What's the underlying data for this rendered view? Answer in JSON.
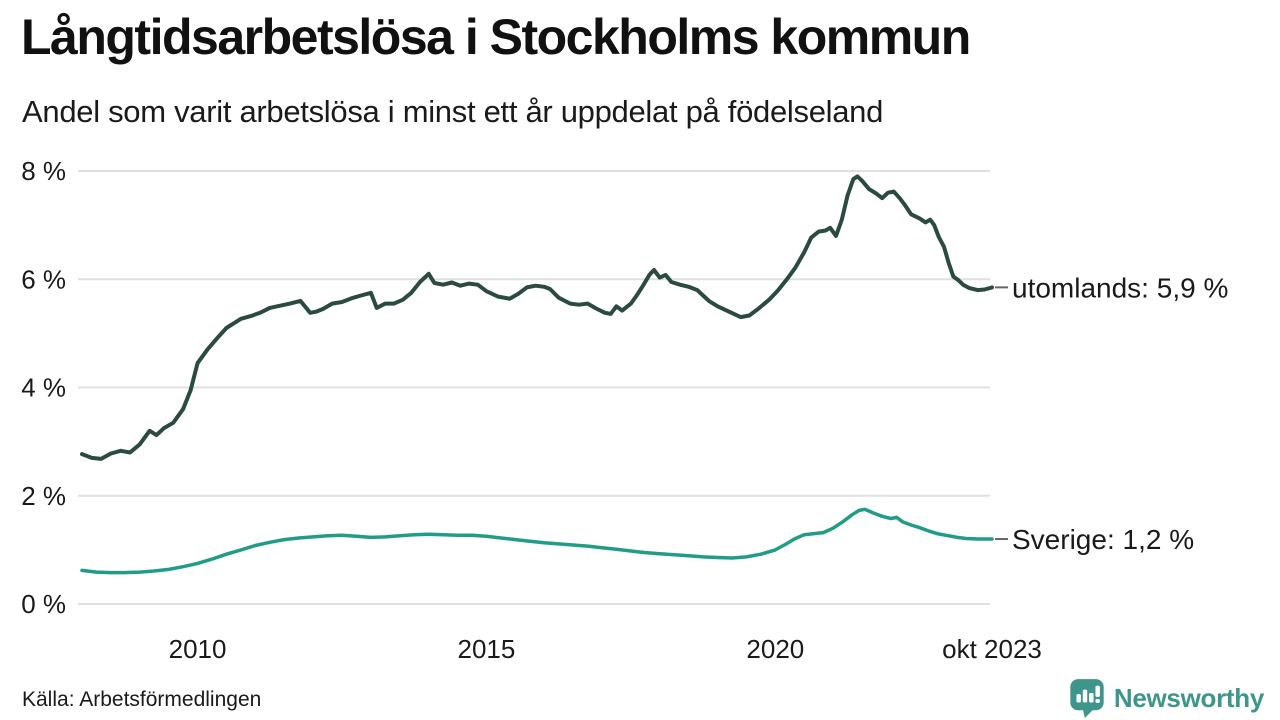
{
  "header": {
    "title": "Långtidsarbetslösa i Stockholms kommun",
    "subtitle": "Andel som varit arbetslösa i minst ett år uppdelat på födelseland"
  },
  "footer": {
    "source": "Källa: Arbetsförmedlingen",
    "brand": "Newsworthy"
  },
  "colors": {
    "foreign_line": "#2b4a40",
    "sweden_line": "#219d87",
    "grid": "#e0e0e0",
    "text": "#1a1a1a",
    "brand_teal": "#3d958b",
    "end_dash": "#666666"
  },
  "chart_data": {
    "type": "line",
    "title": "Långtidsarbetslösa i Stockholms kommun",
    "subtitle": "Andel som varit arbetslösa i minst ett år uppdelat på födelseland",
    "grid": true,
    "grid_color": "#e0e0e0",
    "legend_position": "right-end-labels",
    "x_axis": {
      "range": [
        2008.0,
        2023.75
      ],
      "ticks": [
        {
          "year": 2010,
          "label": "2010"
        },
        {
          "year": 2015,
          "label": "2015"
        },
        {
          "year": 2020,
          "label": "2020"
        },
        {
          "year": 2023.75,
          "label": "okt 2023"
        }
      ]
    },
    "y_axis": {
      "range": [
        0,
        8
      ],
      "unit": "%",
      "ticks": [
        {
          "value": 0,
          "label": "0 %"
        },
        {
          "value": 2,
          "label": "2 %"
        },
        {
          "value": 4,
          "label": "4 %"
        },
        {
          "value": 6,
          "label": "6 %"
        },
        {
          "value": 8,
          "label": "8 %"
        }
      ]
    },
    "series": [
      {
        "name": "utomlands",
        "end_label": "utomlands: 5,9 %",
        "end_value_label": "5,9 %",
        "color": "#2b4a40",
        "width": 4,
        "points": [
          [
            2008.0,
            2.77
          ],
          [
            2008.17,
            2.7
          ],
          [
            2008.33,
            2.68
          ],
          [
            2008.5,
            2.78
          ],
          [
            2008.67,
            2.83
          ],
          [
            2008.83,
            2.8
          ],
          [
            2009.0,
            2.95
          ],
          [
            2009.17,
            3.2
          ],
          [
            2009.29,
            3.12
          ],
          [
            2009.42,
            3.25
          ],
          [
            2009.58,
            3.35
          ],
          [
            2009.75,
            3.6
          ],
          [
            2009.88,
            3.95
          ],
          [
            2010.0,
            4.45
          ],
          [
            2010.17,
            4.7
          ],
          [
            2010.33,
            4.9
          ],
          [
            2010.5,
            5.1
          ],
          [
            2010.75,
            5.27
          ],
          [
            2010.92,
            5.32
          ],
          [
            2011.08,
            5.38
          ],
          [
            2011.25,
            5.47
          ],
          [
            2011.42,
            5.51
          ],
          [
            2011.6,
            5.55
          ],
          [
            2011.78,
            5.6
          ],
          [
            2011.95,
            5.38
          ],
          [
            2012.05,
            5.4
          ],
          [
            2012.17,
            5.45
          ],
          [
            2012.33,
            5.55
          ],
          [
            2012.5,
            5.58
          ],
          [
            2012.67,
            5.65
          ],
          [
            2012.83,
            5.7
          ],
          [
            2013.0,
            5.75
          ],
          [
            2013.1,
            5.47
          ],
          [
            2013.25,
            5.55
          ],
          [
            2013.4,
            5.55
          ],
          [
            2013.55,
            5.62
          ],
          [
            2013.7,
            5.75
          ],
          [
            2013.85,
            5.95
          ],
          [
            2014.0,
            6.1
          ],
          [
            2014.1,
            5.93
          ],
          [
            2014.25,
            5.9
          ],
          [
            2014.4,
            5.94
          ],
          [
            2014.55,
            5.88
          ],
          [
            2014.7,
            5.92
          ],
          [
            2014.85,
            5.9
          ],
          [
            2015.0,
            5.78
          ],
          [
            2015.2,
            5.68
          ],
          [
            2015.4,
            5.64
          ],
          [
            2015.55,
            5.73
          ],
          [
            2015.7,
            5.85
          ],
          [
            2015.85,
            5.88
          ],
          [
            2016.0,
            5.86
          ],
          [
            2016.1,
            5.82
          ],
          [
            2016.25,
            5.66
          ],
          [
            2016.45,
            5.55
          ],
          [
            2016.6,
            5.53
          ],
          [
            2016.75,
            5.55
          ],
          [
            2016.9,
            5.46
          ],
          [
            2017.05,
            5.38
          ],
          [
            2017.15,
            5.36
          ],
          [
            2017.25,
            5.5
          ],
          [
            2017.35,
            5.42
          ],
          [
            2017.5,
            5.55
          ],
          [
            2017.6,
            5.7
          ],
          [
            2017.72,
            5.9
          ],
          [
            2017.82,
            6.08
          ],
          [
            2017.9,
            6.17
          ],
          [
            2018.0,
            6.03
          ],
          [
            2018.1,
            6.08
          ],
          [
            2018.2,
            5.95
          ],
          [
            2018.35,
            5.9
          ],
          [
            2018.5,
            5.86
          ],
          [
            2018.65,
            5.8
          ],
          [
            2018.85,
            5.6
          ],
          [
            2019.0,
            5.5
          ],
          [
            2019.2,
            5.4
          ],
          [
            2019.4,
            5.3
          ],
          [
            2019.55,
            5.33
          ],
          [
            2019.7,
            5.45
          ],
          [
            2019.9,
            5.63
          ],
          [
            2020.05,
            5.8
          ],
          [
            2020.2,
            6.0
          ],
          [
            2020.35,
            6.22
          ],
          [
            2020.5,
            6.5
          ],
          [
            2020.62,
            6.77
          ],
          [
            2020.75,
            6.88
          ],
          [
            2020.87,
            6.9
          ],
          [
            2020.95,
            6.95
          ],
          [
            2021.05,
            6.8
          ],
          [
            2021.15,
            7.1
          ],
          [
            2021.25,
            7.55
          ],
          [
            2021.35,
            7.85
          ],
          [
            2021.42,
            7.9
          ],
          [
            2021.5,
            7.82
          ],
          [
            2021.62,
            7.67
          ],
          [
            2021.75,
            7.58
          ],
          [
            2021.85,
            7.5
          ],
          [
            2021.95,
            7.6
          ],
          [
            2022.05,
            7.62
          ],
          [
            2022.15,
            7.5
          ],
          [
            2022.25,
            7.36
          ],
          [
            2022.35,
            7.2
          ],
          [
            2022.5,
            7.12
          ],
          [
            2022.6,
            7.05
          ],
          [
            2022.68,
            7.1
          ],
          [
            2022.75,
            7.0
          ],
          [
            2022.83,
            6.78
          ],
          [
            2022.92,
            6.6
          ],
          [
            2023.0,
            6.3
          ],
          [
            2023.08,
            6.05
          ],
          [
            2023.17,
            5.98
          ],
          [
            2023.25,
            5.9
          ],
          [
            2023.35,
            5.84
          ],
          [
            2023.5,
            5.8
          ],
          [
            2023.62,
            5.81
          ],
          [
            2023.75,
            5.85
          ]
        ]
      },
      {
        "name": "Sverige",
        "end_label": "Sverige: 1,2 %",
        "end_value_label": "1,2 %",
        "color": "#219d87",
        "width": 3.5,
        "points": [
          [
            2008.0,
            0.62
          ],
          [
            2008.25,
            0.59
          ],
          [
            2008.5,
            0.58
          ],
          [
            2008.75,
            0.58
          ],
          [
            2009.0,
            0.59
          ],
          [
            2009.25,
            0.61
          ],
          [
            2009.5,
            0.64
          ],
          [
            2009.75,
            0.69
          ],
          [
            2010.0,
            0.75
          ],
          [
            2010.25,
            0.83
          ],
          [
            2010.5,
            0.92
          ],
          [
            2010.75,
            1.0
          ],
          [
            2011.0,
            1.08
          ],
          [
            2011.25,
            1.14
          ],
          [
            2011.5,
            1.19
          ],
          [
            2011.75,
            1.22
          ],
          [
            2012.0,
            1.24
          ],
          [
            2012.25,
            1.26
          ],
          [
            2012.5,
            1.27
          ],
          [
            2012.75,
            1.25
          ],
          [
            2013.0,
            1.23
          ],
          [
            2013.25,
            1.24
          ],
          [
            2013.5,
            1.26
          ],
          [
            2013.75,
            1.28
          ],
          [
            2014.0,
            1.29
          ],
          [
            2014.25,
            1.28
          ],
          [
            2014.5,
            1.27
          ],
          [
            2014.75,
            1.27
          ],
          [
            2015.0,
            1.25
          ],
          [
            2015.25,
            1.22
          ],
          [
            2015.5,
            1.19
          ],
          [
            2015.75,
            1.16
          ],
          [
            2016.0,
            1.13
          ],
          [
            2016.25,
            1.11
          ],
          [
            2016.5,
            1.09
          ],
          [
            2016.75,
            1.07
          ],
          [
            2017.0,
            1.04
          ],
          [
            2017.25,
            1.01
          ],
          [
            2017.5,
            0.98
          ],
          [
            2017.75,
            0.95
          ],
          [
            2018.0,
            0.93
          ],
          [
            2018.25,
            0.91
          ],
          [
            2018.5,
            0.89
          ],
          [
            2018.75,
            0.87
          ],
          [
            2019.0,
            0.86
          ],
          [
            2019.25,
            0.85
          ],
          [
            2019.5,
            0.87
          ],
          [
            2019.75,
            0.92
          ],
          [
            2020.0,
            1.0
          ],
          [
            2020.17,
            1.1
          ],
          [
            2020.33,
            1.2
          ],
          [
            2020.5,
            1.28
          ],
          [
            2020.67,
            1.3
          ],
          [
            2020.83,
            1.32
          ],
          [
            2021.0,
            1.4
          ],
          [
            2021.17,
            1.52
          ],
          [
            2021.33,
            1.65
          ],
          [
            2021.45,
            1.73
          ],
          [
            2021.55,
            1.75
          ],
          [
            2021.7,
            1.68
          ],
          [
            2021.85,
            1.62
          ],
          [
            2022.0,
            1.58
          ],
          [
            2022.1,
            1.6
          ],
          [
            2022.2,
            1.52
          ],
          [
            2022.35,
            1.46
          ],
          [
            2022.5,
            1.41
          ],
          [
            2022.65,
            1.35
          ],
          [
            2022.8,
            1.3
          ],
          [
            2023.0,
            1.26
          ],
          [
            2023.15,
            1.23
          ],
          [
            2023.3,
            1.21
          ],
          [
            2023.5,
            1.2
          ],
          [
            2023.75,
            1.2
          ]
        ]
      }
    ]
  }
}
